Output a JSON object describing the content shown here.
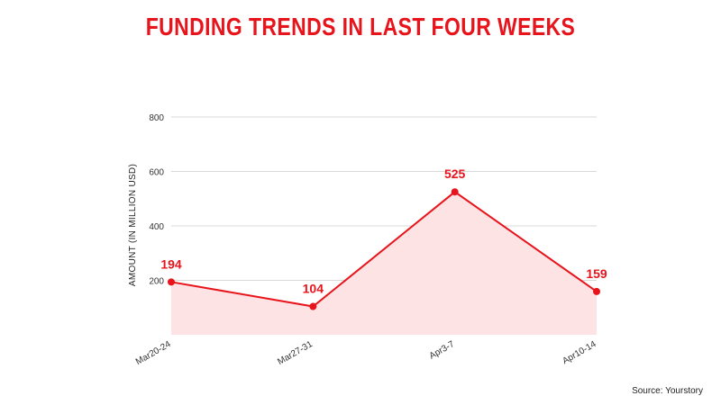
{
  "title": "FUNDING TRENDS IN LAST FOUR WEEKS",
  "source": "Source: Yourstory",
  "colors": {
    "accent": "#e8141c",
    "area": "#fde3e3",
    "grid": "#d9d9d9"
  },
  "chart_data": {
    "type": "area",
    "title": "FUNDING TRENDS IN LAST FOUR WEEKS",
    "categories": [
      "Mar20-24",
      "Mar27-31",
      "Apr3-7",
      "Apr10-14"
    ],
    "series": [
      {
        "values": [
          194,
          104,
          525,
          159
        ]
      }
    ],
    "data_labels": [
      "194",
      "104",
      "525",
      "159"
    ],
    "xlabel": "",
    "ylabel": "AMOUNT (IN MILLION USD)",
    "ylim": [
      0,
      800
    ],
    "yticks": [
      200,
      400,
      600,
      800
    ],
    "grid": true,
    "legend": "none"
  }
}
